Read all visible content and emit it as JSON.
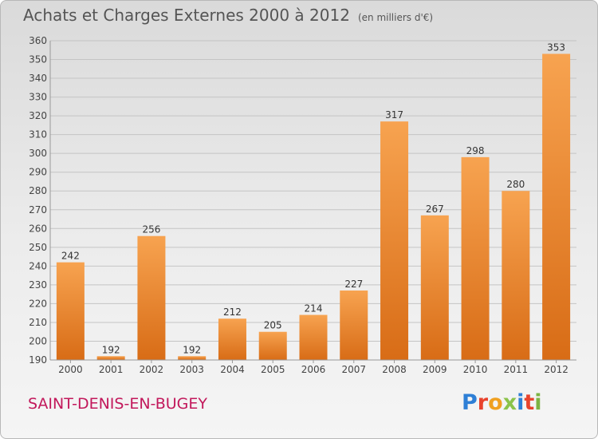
{
  "header": {
    "title": "Achats et Charges Externes 2000 à 2012",
    "subtitle": "(en milliers d'€)"
  },
  "footer": {
    "place": "SAINT-DENIS-EN-BUGEY",
    "logo": "Proxiti",
    "logo_colors": [
      "#2e7fd6",
      "#e8432d",
      "#f0a020",
      "#8bc34a",
      "#2e7fd6",
      "#e8432d",
      "#7cb342"
    ]
  },
  "chart_data": {
    "type": "bar",
    "title": "Achats et Charges Externes 2000 à 2012",
    "categories": [
      "2000",
      "2001",
      "2002",
      "2003",
      "2004",
      "2005",
      "2006",
      "2007",
      "2008",
      "2009",
      "2010",
      "2011",
      "2012"
    ],
    "values": [
      242,
      192,
      256,
      192,
      212,
      205,
      214,
      227,
      317,
      267,
      298,
      280,
      353
    ],
    "ylim": [
      190,
      360
    ],
    "yticks": [
      190,
      200,
      210,
      220,
      230,
      240,
      250,
      260,
      270,
      280,
      290,
      300,
      310,
      320,
      330,
      340,
      350,
      360
    ],
    "grid": true,
    "legend": "none",
    "bar_color_top": "#f7a350",
    "bar_color_bottom": "#d86c16"
  }
}
